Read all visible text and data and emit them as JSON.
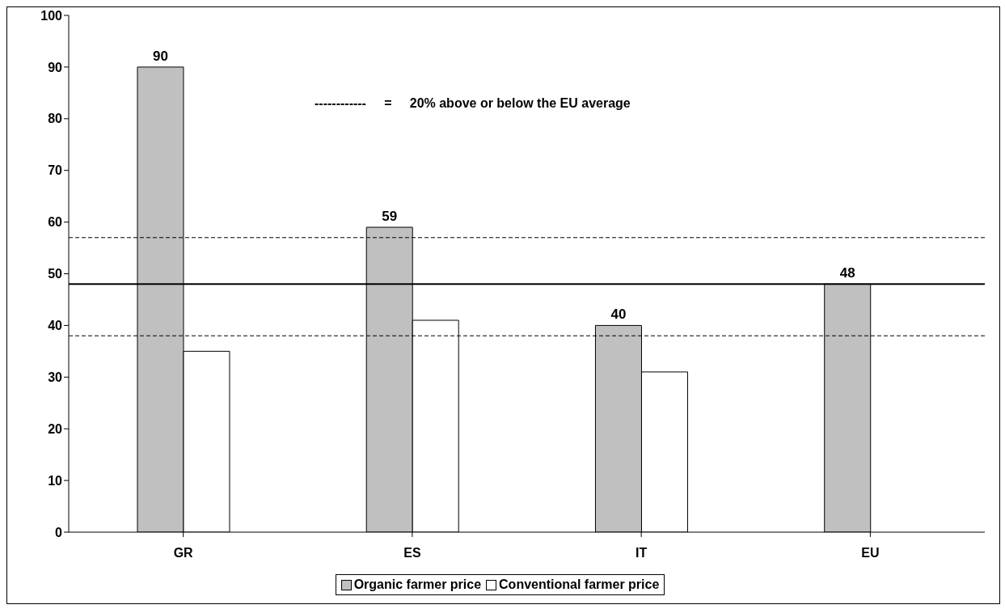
{
  "chart_data": {
    "type": "bar",
    "categories": [
      "GR",
      "ES",
      "IT",
      "EU"
    ],
    "series": [
      {
        "name": "Organic farmer price",
        "color": "#c0c0c0",
        "values": [
          90,
          59,
          40,
          48
        ],
        "value_labels": [
          "90",
          "59",
          "40",
          "48"
        ]
      },
      {
        "name": "Conventional farmer price",
        "color": "#ffffff",
        "values": [
          35,
          41,
          31,
          null
        ]
      }
    ],
    "ylim": [
      0,
      100
    ],
    "yticks": [
      0,
      10,
      20,
      30,
      40,
      50,
      60,
      70,
      80,
      90,
      100
    ],
    "grid": false,
    "legend": "bottom",
    "ref_lines": [
      {
        "axis": "y",
        "value": 57,
        "color": "#000000",
        "line_style": "dashed"
      },
      {
        "axis": "y",
        "value": 48,
        "color": "#000000",
        "line_style": "solid"
      },
      {
        "axis": "y",
        "value": 38,
        "color": "#000000",
        "line_style": "dashed"
      }
    ],
    "annotations": [
      "------------     =     20% above or below the EU average"
    ]
  }
}
